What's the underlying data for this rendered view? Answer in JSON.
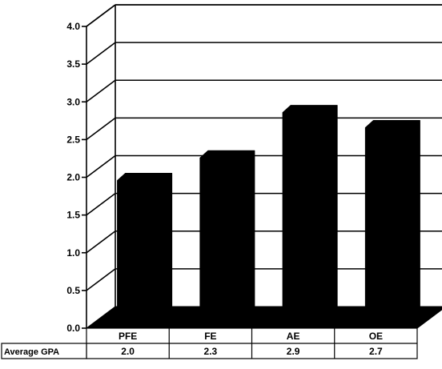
{
  "chart_data": {
    "type": "bar",
    "style": "3d-column-with-data-table",
    "categories": [
      "PFE",
      "FE",
      "AE",
      "OE"
    ],
    "series": [
      {
        "name": "Average GPA",
        "values": [
          2.0,
          2.3,
          2.9,
          2.7
        ]
      }
    ],
    "data_table": {
      "row_label": "Average GPA",
      "values": [
        "2.0",
        "2.3",
        "2.9",
        "2.7"
      ]
    },
    "y_ticks": [
      "0.0",
      "0.5",
      "1.0",
      "1.5",
      "2.0",
      "2.5",
      "3.0",
      "3.5",
      "4.0"
    ],
    "ylim": [
      0,
      4.0
    ],
    "grid": true,
    "legend": "none",
    "colors": {
      "bar": "#000000",
      "background": "#ffffff",
      "lines": "#000000"
    }
  }
}
